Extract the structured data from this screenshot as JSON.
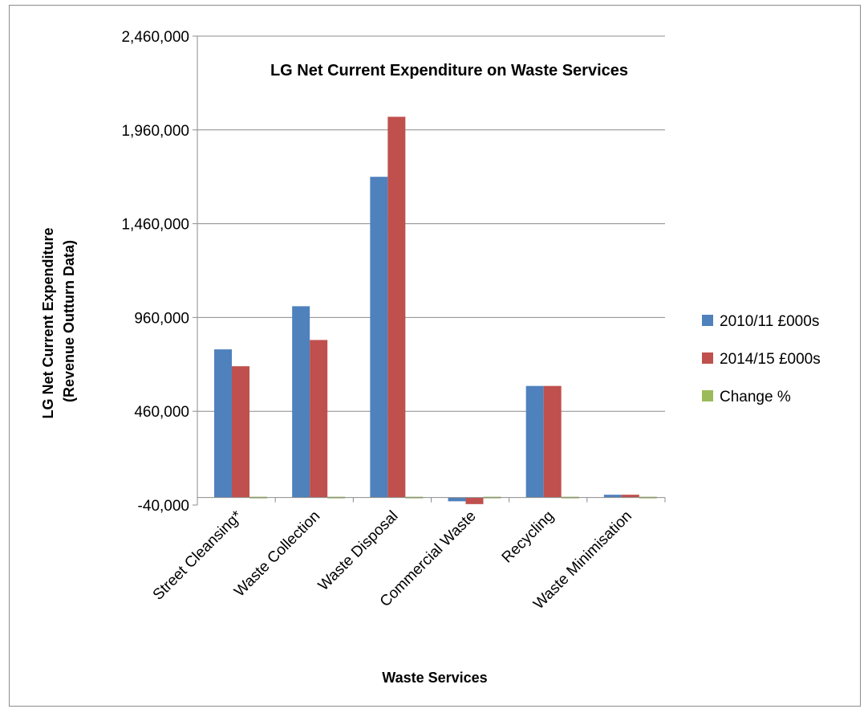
{
  "chart_data": {
    "type": "bar",
    "title": "LG Net Current Expenditure on Waste Services",
    "xlabel": "Waste Services",
    "ylabel": [
      "LG Net Current Expenditure",
      "(Revenue Outturn Data)"
    ],
    "categories": [
      "Street Cleansing*",
      "Waste Collection",
      "Waste Disposal",
      "Commercial Waste",
      "Recycling",
      "Waste Minimisation"
    ],
    "series": [
      {
        "name": "2010/11 £000s",
        "color": "#4f81bd",
        "values": [
          790000,
          1020000,
          1710000,
          -20000,
          595000,
          15000
        ]
      },
      {
        "name": "2014/15 £000s",
        "color": "#c0504d",
        "values": [
          700000,
          840000,
          2030000,
          -35000,
          595000,
          15000
        ]
      },
      {
        "name": "Change %",
        "color": "#9bbb59",
        "values": [
          -11,
          -18,
          19,
          75,
          0,
          0
        ]
      }
    ],
    "yticks": [
      "2,460,000",
      "1,960,000",
      "1,460,000",
      "960,000",
      "460,000",
      "-40,000"
    ],
    "ytick_values": [
      2460000,
      1960000,
      1460000,
      960000,
      460000,
      -40000
    ],
    "ylim": [
      -40000,
      2460000
    ],
    "grid": true,
    "legend_position": "right"
  }
}
